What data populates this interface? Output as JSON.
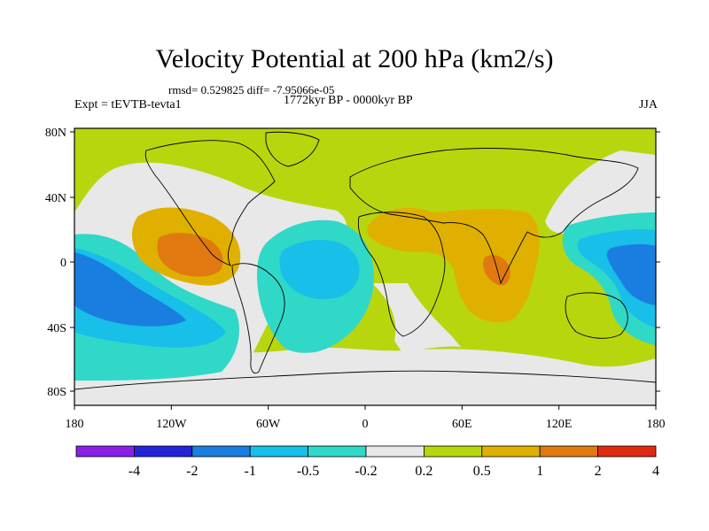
{
  "title": "Velocity Potential at 200 hPa (km2/s)",
  "stats": "rmsd= 0.529825 diff= -7.95066e-05",
  "experiment": "Expt = tEVTB-tevta1",
  "period": "1772kyr BP - 0000kyr BP",
  "season": "JJA",
  "lat_ticks": [
    "80N",
    "40N",
    "0",
    "40S",
    "80S"
  ],
  "lon_ticks": [
    "180",
    "120W",
    "60W",
    "0",
    "60E",
    "120E",
    "180"
  ],
  "colorbar": {
    "labels": [
      "-4",
      "-2",
      "-1",
      "-0.5",
      "-0.2",
      "0.2",
      "0.5",
      "1",
      "2",
      "4"
    ],
    "colors": [
      "#8a20e6",
      "#2323d8",
      "#1a7ee0",
      "#18bfe8",
      "#30d8c8",
      "#e8e8e8",
      "#b8d60e",
      "#e0b000",
      "#e07a10",
      "#e02a10"
    ]
  },
  "map_fill": {
    "background": "#b8d60e",
    "neutral": "#e8e8e8",
    "negative_light": "#30d8c8",
    "negative_mid": "#18bfe8",
    "negative_strong": "#1a7ee0",
    "positive_mid": "#e0b000",
    "positive_strong": "#e07a10"
  }
}
